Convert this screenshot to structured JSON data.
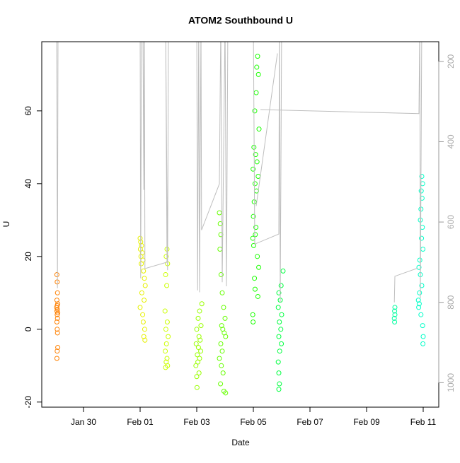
{
  "chart_data": {
    "type": "scatter",
    "title": "ATOM2 Southbound U",
    "xlabel": "Date",
    "ylabel": "U",
    "xlim": [
      28.525,
      42.55
    ],
    "ylim": [
      -21.4,
      79.0
    ],
    "y2lim": [
      1061,
      151
    ],
    "xticks": [
      {
        "value": 30,
        "label": "Jan 30"
      },
      {
        "value": 32,
        "label": "Feb 01"
      },
      {
        "value": 34,
        "label": "Feb 03"
      },
      {
        "value": 36,
        "label": "Feb 05"
      },
      {
        "value": 38,
        "label": "Feb 07"
      },
      {
        "value": 40,
        "label": "Feb 09"
      },
      {
        "value": 42,
        "label": "Feb 11"
      }
    ],
    "yticks": [
      -20,
      0,
      20,
      40,
      60
    ],
    "y2ticks": [
      200,
      400,
      600,
      800,
      1000
    ],
    "series": [
      {
        "color": "#ff8000",
        "mode": "markers",
        "x": [
          29.06,
          29.07,
          29.08,
          29.06,
          29.09,
          29.07,
          29.05,
          29.08,
          29.06,
          29.09,
          29.07,
          29.08,
          29.06,
          29.07,
          29.08,
          29.09,
          29.07,
          29.06
        ],
        "values": [
          15,
          13,
          10,
          8,
          7,
          6.5,
          6,
          5.5,
          5,
          4.5,
          4,
          3,
          2,
          0,
          -1,
          -5,
          -6,
          -8
        ]
      },
      {
        "color": "#e6f000",
        "mode": "markers",
        "x": [
          32.0,
          32.02,
          32.05,
          32.01,
          32.08,
          32.03,
          32.1,
          32.04,
          32.12,
          32.15,
          32.18,
          32.06,
          32.14,
          32.0,
          32.09,
          32.11,
          32.16,
          32.13,
          32.17
        ],
        "values": [
          25,
          24,
          23,
          22,
          21,
          20,
          19,
          18,
          16,
          14,
          12,
          10,
          8,
          6,
          4,
          2,
          0,
          -2,
          -3
        ]
      },
      {
        "color": "#ccff00",
        "mode": "markers",
        "x": [
          32.95,
          32.92,
          32.97,
          32.9,
          32.94,
          32.88,
          32.96,
          32.91,
          32.99,
          32.93,
          32.89,
          32.95,
          32.92,
          32.97,
          32.9
        ],
        "values": [
          22,
          20,
          18,
          15,
          12,
          5,
          2,
          0,
          -2,
          -4,
          -6,
          -8,
          -9,
          -10,
          -10.5
        ]
      },
      {
        "color": "#99ff00",
        "mode": "markers",
        "x": [
          34.18,
          34.1,
          34.05,
          34.15,
          34.0,
          34.08,
          34.12,
          33.98,
          34.06,
          34.14,
          34.02,
          34.1,
          34.04,
          33.97,
          34.08,
          34.0,
          34.01
        ],
        "values": [
          7,
          5,
          3,
          1,
          0,
          -2,
          -3,
          -4,
          -5,
          -6,
          -7,
          -8,
          -9,
          -10,
          -12,
          -13,
          -16
        ]
      },
      {
        "color": "#66ff00",
        "mode": "markers",
        "x": [
          34.8,
          34.83,
          34.85,
          34.82,
          34.86,
          34.9,
          34.95,
          35.0,
          34.88,
          34.92,
          34.97,
          35.02,
          34.85,
          34.9,
          34.8,
          34.87,
          34.93,
          34.84,
          34.96,
          35.02
        ],
        "values": [
          32,
          29,
          26,
          22,
          15,
          10,
          6,
          3,
          1,
          0,
          -1,
          -2,
          -4,
          -6,
          -8,
          -10,
          -12,
          -15,
          -17,
          -17.5
        ]
      },
      {
        "color": "#1aff00",
        "mode": "markers",
        "x": [
          36.15,
          36.12,
          36.18,
          36.1,
          36.05,
          36.2,
          36.02,
          36.08,
          36.13,
          35.99,
          36.17,
          36.06,
          36.11,
          36.03,
          36.0,
          36.09,
          36.07,
          35.98,
          36.01,
          36.14,
          36.19,
          36.04,
          36.06,
          36.16,
          35.98,
          35.99
        ],
        "values": [
          75,
          72,
          70,
          65,
          60,
          55,
          50,
          48,
          46,
          44,
          42,
          40,
          38,
          35,
          31,
          28,
          26,
          25,
          23,
          20,
          17,
          14,
          11,
          9,
          4,
          2
        ]
      },
      {
        "color": "#00ff40",
        "mode": "markers",
        "x": [
          37.05,
          36.98,
          36.9,
          36.95,
          36.88,
          37.0,
          36.92,
          36.97,
          36.9,
          36.99,
          36.93,
          36.88,
          36.9,
          36.92,
          36.9
        ],
        "values": [
          16,
          12,
          10,
          8,
          6,
          4,
          2,
          0,
          -2,
          -4,
          -6,
          -9,
          -12,
          -15,
          -16.5
        ]
      },
      {
        "color": "#00ffa0",
        "mode": "markers",
        "x": [
          41.0,
          40.99,
          41.0,
          40.98,
          40.99
        ],
        "values": [
          6,
          5,
          4,
          3,
          2
        ]
      },
      {
        "color": "#00ffc8",
        "mode": "markers",
        "x": [
          41.95,
          41.98,
          41.93,
          41.96,
          41.92,
          41.9,
          41.97,
          41.94,
          41.99,
          41.88,
          41.85,
          41.9,
          41.95,
          41.87,
          41.83,
          41.86,
          41.84,
          41.92,
          41.98,
          42.0,
          41.99
        ],
        "values": [
          42,
          40,
          38,
          36,
          33,
          30,
          28,
          25,
          22,
          19,
          17,
          15,
          12,
          10,
          8,
          7,
          6,
          4,
          1,
          -2,
          -4
        ]
      },
      {
        "color": "#bebebe",
        "mode": "lines",
        "axis": "y2",
        "x": [
          29.05,
          29.08,
          29.1,
          null,
          32.0,
          32.02,
          32.05,
          32.1,
          32.13,
          32.15,
          32.17,
          32.95,
          32.9,
          32.97,
          33.0,
          null,
          34.0,
          34.03,
          34.07,
          34.1,
          34.15,
          34.17,
          34.8,
          34.85,
          34.9,
          35.0,
          35.05,
          35.1,
          null,
          36.0,
          36.05,
          36.9,
          36.92,
          36.95,
          37.0,
          null,
          36.1,
          36.85,
          null,
          36.25,
          41.85,
          41.88,
          41.9,
          41.95,
          null,
          40.98,
          41.0,
          41.8
        ],
        "values": [
          100,
          765,
          100,
          null,
          100,
          740,
          100,
          100,
          520,
          100,
          716,
          700,
          100,
          720,
          100,
          null,
          100,
          770,
          100,
          775,
          100,
          620,
          505,
          100,
          750,
          100,
          760,
          100,
          null,
          100,
          655,
          630,
          100,
          800,
          100,
          null,
          560,
          180,
          null,
          320,
          330,
          100,
          790,
          100,
          null,
          800,
          735,
          715
        ]
      }
    ]
  }
}
